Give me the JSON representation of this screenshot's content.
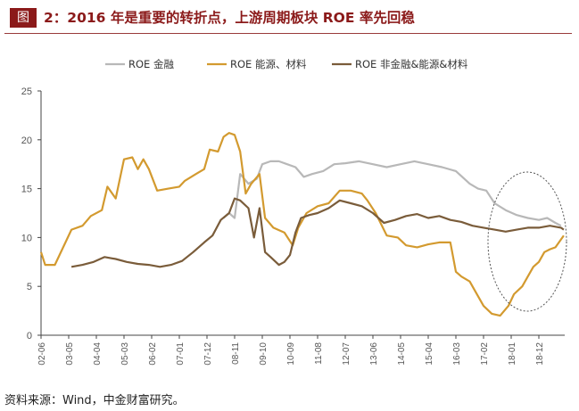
{
  "figure": {
    "tag": "图",
    "title": "2：2016 年是重要的转折点，上游周期板块 ROE 率先回稳",
    "source": "资料来源：Wind，中金财富研究。"
  },
  "chart_data": {
    "type": "line",
    "ylim": [
      0,
      25
    ],
    "yticks": [
      0,
      5,
      10,
      15,
      20,
      25
    ],
    "legend_position": "top",
    "x_tick_labels": [
      "02-06",
      "03-05",
      "04-04",
      "05-03",
      "06-02",
      "07-01",
      "07-12",
      "08-11",
      "09-10",
      "10-09",
      "11-08",
      "12-07",
      "13-06",
      "14-05",
      "15-04",
      "16-03",
      "17-02",
      "18-01",
      "18-12"
    ],
    "series": [
      {
        "name": "ROE 金融",
        "color": "#b8b8b8",
        "points": [
          [
            6.6,
            12.0
          ],
          [
            6.8,
            12.5
          ],
          [
            7.0,
            12.0
          ],
          [
            7.2,
            16.5
          ],
          [
            7.5,
            15.5
          ],
          [
            7.8,
            16.0
          ],
          [
            8.0,
            17.5
          ],
          [
            8.3,
            17.8
          ],
          [
            8.6,
            17.8
          ],
          [
            8.9,
            17.5
          ],
          [
            9.2,
            17.2
          ],
          [
            9.5,
            16.2
          ],
          [
            9.8,
            16.5
          ],
          [
            10.2,
            16.8
          ],
          [
            10.6,
            17.5
          ],
          [
            11.0,
            17.6
          ],
          [
            11.5,
            17.8
          ],
          [
            12.0,
            17.5
          ],
          [
            12.5,
            17.2
          ],
          [
            13.0,
            17.5
          ],
          [
            13.5,
            17.8
          ],
          [
            14.0,
            17.5
          ],
          [
            14.5,
            17.2
          ],
          [
            15.0,
            16.8
          ],
          [
            15.5,
            15.5
          ],
          [
            15.8,
            15.0
          ],
          [
            16.1,
            14.8
          ],
          [
            16.4,
            13.5
          ],
          [
            16.8,
            12.8
          ],
          [
            17.2,
            12.3
          ],
          [
            17.6,
            12.0
          ],
          [
            18.0,
            11.8
          ],
          [
            18.3,
            12.0
          ],
          [
            18.6,
            11.5
          ],
          [
            18.8,
            11.2
          ]
        ]
      },
      {
        "name": "ROE 能源、材料",
        "color": "#d39a2f",
        "points": [
          [
            0.0,
            8.5
          ],
          [
            0.15,
            7.2
          ],
          [
            0.5,
            7.2
          ],
          [
            0.8,
            9.0
          ],
          [
            1.1,
            10.8
          ],
          [
            1.5,
            11.2
          ],
          [
            1.8,
            12.2
          ],
          [
            2.2,
            12.8
          ],
          [
            2.4,
            15.2
          ],
          [
            2.7,
            14.0
          ],
          [
            3.0,
            18.0
          ],
          [
            3.3,
            18.2
          ],
          [
            3.5,
            17.0
          ],
          [
            3.7,
            18.0
          ],
          [
            3.9,
            17.0
          ],
          [
            4.2,
            14.8
          ],
          [
            4.6,
            15.0
          ],
          [
            5.0,
            15.2
          ],
          [
            5.2,
            15.8
          ],
          [
            5.6,
            16.5
          ],
          [
            5.9,
            17.0
          ],
          [
            6.1,
            19.0
          ],
          [
            6.4,
            18.8
          ],
          [
            6.6,
            20.3
          ],
          [
            6.8,
            20.7
          ],
          [
            7.0,
            20.5
          ],
          [
            7.2,
            18.8
          ],
          [
            7.4,
            14.5
          ],
          [
            7.6,
            15.5
          ],
          [
            7.9,
            16.5
          ],
          [
            8.1,
            12.0
          ],
          [
            8.4,
            11.0
          ],
          [
            8.8,
            10.5
          ],
          [
            9.1,
            9.2
          ],
          [
            9.3,
            11.0
          ],
          [
            9.6,
            12.5
          ],
          [
            10.0,
            13.2
          ],
          [
            10.4,
            13.5
          ],
          [
            10.8,
            14.8
          ],
          [
            11.2,
            14.8
          ],
          [
            11.6,
            14.5
          ],
          [
            11.8,
            13.8
          ],
          [
            12.1,
            12.5
          ],
          [
            12.5,
            10.2
          ],
          [
            12.9,
            10.0
          ],
          [
            13.2,
            9.2
          ],
          [
            13.6,
            9.0
          ],
          [
            14.0,
            9.3
          ],
          [
            14.4,
            9.5
          ],
          [
            14.8,
            9.5
          ],
          [
            15.0,
            6.5
          ],
          [
            15.2,
            6.0
          ],
          [
            15.5,
            5.5
          ],
          [
            15.7,
            4.5
          ],
          [
            16.0,
            3.0
          ],
          [
            16.3,
            2.2
          ],
          [
            16.6,
            2.0
          ],
          [
            16.9,
            3.0
          ],
          [
            17.1,
            4.2
          ],
          [
            17.4,
            5.0
          ],
          [
            17.6,
            6.0
          ],
          [
            17.8,
            7.0
          ],
          [
            18.0,
            7.5
          ],
          [
            18.2,
            8.5
          ],
          [
            18.4,
            8.8
          ],
          [
            18.6,
            9.0
          ],
          [
            18.8,
            9.8
          ],
          [
            18.9,
            10.2
          ]
        ]
      },
      {
        "name": "ROE 非金融&能源&材料",
        "color": "#7a5c3a",
        "points": [
          [
            1.1,
            7.0
          ],
          [
            1.5,
            7.2
          ],
          [
            1.9,
            7.5
          ],
          [
            2.3,
            8.0
          ],
          [
            2.7,
            7.8
          ],
          [
            3.1,
            7.5
          ],
          [
            3.5,
            7.3
          ],
          [
            3.9,
            7.2
          ],
          [
            4.3,
            7.0
          ],
          [
            4.7,
            7.2
          ],
          [
            5.1,
            7.6
          ],
          [
            5.5,
            8.5
          ],
          [
            5.9,
            9.5
          ],
          [
            6.2,
            10.2
          ],
          [
            6.5,
            11.8
          ],
          [
            6.8,
            12.5
          ],
          [
            7.0,
            14.0
          ],
          [
            7.2,
            13.8
          ],
          [
            7.5,
            13.0
          ],
          [
            7.7,
            10.0
          ],
          [
            7.9,
            13.0
          ],
          [
            8.1,
            8.5
          ],
          [
            8.3,
            8.0
          ],
          [
            8.6,
            7.2
          ],
          [
            8.8,
            7.5
          ],
          [
            9.0,
            8.2
          ],
          [
            9.2,
            10.5
          ],
          [
            9.4,
            12.0
          ],
          [
            9.7,
            12.3
          ],
          [
            10.0,
            12.5
          ],
          [
            10.4,
            13.0
          ],
          [
            10.8,
            13.8
          ],
          [
            11.2,
            13.5
          ],
          [
            11.6,
            13.2
          ],
          [
            12.0,
            12.5
          ],
          [
            12.4,
            11.5
          ],
          [
            12.8,
            11.8
          ],
          [
            13.2,
            12.2
          ],
          [
            13.6,
            12.4
          ],
          [
            14.0,
            12.0
          ],
          [
            14.4,
            12.2
          ],
          [
            14.8,
            11.8
          ],
          [
            15.2,
            11.6
          ],
          [
            15.6,
            11.2
          ],
          [
            16.0,
            11.0
          ],
          [
            16.4,
            10.8
          ],
          [
            16.8,
            10.6
          ],
          [
            17.2,
            10.8
          ],
          [
            17.6,
            11.0
          ],
          [
            18.0,
            11.0
          ],
          [
            18.4,
            11.2
          ],
          [
            18.8,
            11.0
          ],
          [
            18.9,
            10.8
          ]
        ]
      }
    ]
  }
}
